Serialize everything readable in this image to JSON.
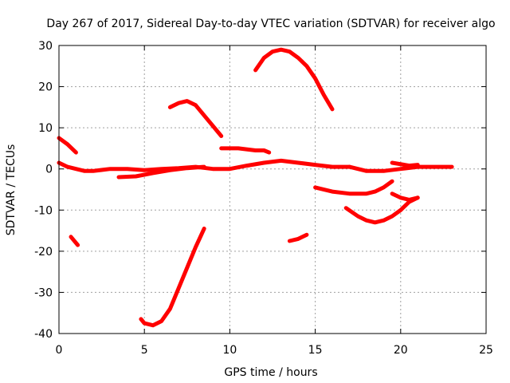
{
  "chart_data": {
    "type": "line",
    "title": "Day 267 of 2017, Sidereal Day-to-day VTEC variation (SDTVAR) for receiver algo",
    "xlabel": "GPS time / hours",
    "ylabel": "SDTVAR / TECUs",
    "xlim": [
      0,
      25
    ],
    "ylim": [
      -40,
      30
    ],
    "xticks": [
      0,
      5,
      10,
      15,
      20,
      25
    ],
    "yticks": [
      -40,
      -30,
      -20,
      -10,
      0,
      10,
      20,
      30
    ],
    "grid": true,
    "color": "#ff0000",
    "series": [
      {
        "name": "s1",
        "x": [
          0,
          0.5,
          1.0
        ],
        "y": [
          7.5,
          6.0,
          4.0
        ]
      },
      {
        "name": "s2",
        "x": [
          0,
          0.5,
          1.0,
          1.5,
          2.0,
          3.0,
          4.0,
          5.0,
          6.0,
          7.0,
          8.0,
          9.0,
          10.0,
          11.0,
          12.0,
          13.0,
          14.0,
          15.0,
          16.0,
          17.0
        ],
        "y": [
          1.5,
          0.5,
          0.0,
          -0.5,
          -0.5,
          0.0,
          0.0,
          -0.3,
          0.0,
          0.2,
          0.5,
          0.0,
          0.0,
          0.8,
          1.5,
          2.0,
          1.5,
          1.0,
          0.5,
          0.5
        ]
      },
      {
        "name": "s3",
        "x": [
          3.5,
          4.5,
          5.5,
          6.5,
          7.5,
          8.5
        ],
        "y": [
          -2.0,
          -1.8,
          -1.0,
          -0.3,
          0.2,
          0.5
        ]
      },
      {
        "name": "s4",
        "x": [
          17.0,
          18.0,
          19.0,
          20.0,
          21.0,
          22.0,
          23.0
        ],
        "y": [
          0.5,
          -0.5,
          -0.5,
          0.0,
          0.5,
          0.5,
          0.5
        ]
      },
      {
        "name": "s5",
        "x": [
          19.5,
          20.5,
          21.0
        ],
        "y": [
          1.5,
          0.8,
          1.0
        ]
      },
      {
        "name": "s6",
        "x": [
          6.5,
          7.0,
          7.5,
          8.0,
          8.5,
          9.0,
          9.5
        ],
        "y": [
          15.0,
          16.0,
          16.5,
          15.5,
          13.0,
          10.5,
          8.0
        ]
      },
      {
        "name": "s7",
        "x": [
          9.5,
          10.5,
          11.5,
          12.0,
          12.3
        ],
        "y": [
          5.0,
          5.0,
          4.5,
          4.5,
          4.0
        ]
      },
      {
        "name": "s8",
        "x": [
          11.5,
          12.0,
          12.5,
          13.0,
          13.5,
          14.0,
          14.5,
          15.0,
          15.5,
          16.0
        ],
        "y": [
          24.0,
          27.0,
          28.5,
          29.0,
          28.5,
          27.0,
          25.0,
          22.0,
          18.0,
          14.5
        ]
      },
      {
        "name": "s9",
        "x": [
          15.0,
          16.0,
          17.0,
          18.0,
          18.5,
          19.0,
          19.5
        ],
        "y": [
          -4.5,
          -5.5,
          -6.0,
          -6.0,
          -5.5,
          -4.5,
          -3.0
        ]
      },
      {
        "name": "s10",
        "x": [
          16.8,
          17.5,
          18.0,
          18.5,
          19.0,
          19.5,
          20.0,
          20.5,
          21.0
        ],
        "y": [
          -9.5,
          -11.5,
          -12.5,
          -13.0,
          -12.5,
          -11.5,
          -10.0,
          -8.0,
          -7.0
        ]
      },
      {
        "name": "s11",
        "x": [
          19.5,
          20.0,
          20.5,
          21.0
        ],
        "y": [
          -6.0,
          -7.0,
          -7.5,
          -7.0
        ]
      },
      {
        "name": "s12",
        "x": [
          0.7,
          1.1
        ],
        "y": [
          -16.5,
          -18.5
        ]
      },
      {
        "name": "s13",
        "x": [
          13.5,
          14.0,
          14.5
        ],
        "y": [
          -17.5,
          -17.0,
          -16.0
        ]
      },
      {
        "name": "s14",
        "x": [
          4.8,
          5.0,
          5.5,
          6.0,
          6.5,
          7.0,
          7.5,
          8.0,
          8.5
        ],
        "y": [
          -36.5,
          -37.5,
          -38.0,
          -37.0,
          -34.0,
          -29.0,
          -24.0,
          -19.0,
          -14.5
        ]
      }
    ]
  }
}
